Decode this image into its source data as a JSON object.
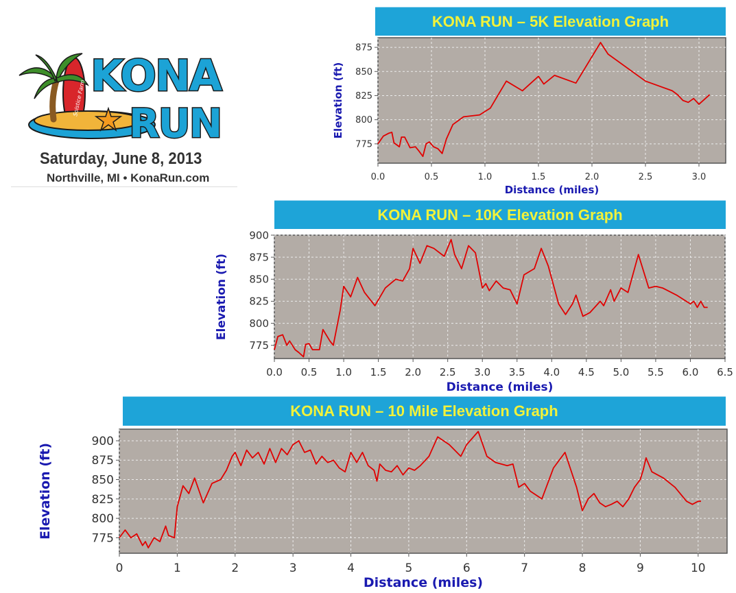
{
  "logo": {
    "wordmark_line1": "KONA",
    "wordmark_line2": "RUN",
    "surfboard_text": "Solstice Farm",
    "date": "Saturday, June 8, 2013",
    "location": "Northville, MI • KonaRun.com",
    "colors": {
      "wordmark": "#1ca3d6",
      "outline": "#1a1a1a",
      "palm": "#3e8e2a",
      "surfboard": "#d8262b",
      "sand": "#f1b43a",
      "starfish": "#f39a1e"
    }
  },
  "colors": {
    "banner_bg": "#1ea4d8",
    "banner_text": "#f2f23a",
    "plot_bg": "#b3aca6",
    "line": "#e00000",
    "axis_label": "#1a1ab0"
  },
  "chart_data": [
    {
      "type": "line",
      "title": "KONA RUN – 5K Elevation Graph",
      "xlabel": "Distance (miles)",
      "ylabel": "Elevation (ft)",
      "xlim": [
        0,
        3.25
      ],
      "ylim": [
        755,
        885
      ],
      "xticks": [
        0,
        0.5,
        1,
        1.5,
        2,
        2.5,
        3
      ],
      "xtick_labels": [
        "0.0",
        "0.5",
        "1.0",
        "1.5",
        "2.0",
        "2.5",
        "3.0"
      ],
      "yticks": [
        775,
        800,
        825,
        850,
        875
      ],
      "grid": true,
      "series": [
        {
          "x": [
            0,
            0.05,
            0.1,
            0.13,
            0.15,
            0.2,
            0.22,
            0.25,
            0.3,
            0.35,
            0.38,
            0.42,
            0.45,
            0.48,
            0.52,
            0.56,
            0.6,
            0.64,
            0.7,
            0.8,
            0.95,
            1.05,
            1.2,
            1.35,
            1.5,
            1.55,
            1.65,
            1.85,
            2.08,
            2.15,
            2.5,
            2.75,
            2.8,
            2.85,
            2.9,
            2.95,
            3.0,
            3.05,
            3.1
          ],
          "y": [
            775,
            783,
            786,
            787,
            776,
            772,
            782,
            782,
            771,
            772,
            768,
            762,
            775,
            777,
            772,
            770,
            765,
            780,
            795,
            803,
            805,
            812,
            840,
            830,
            845,
            837,
            846,
            838,
            880,
            868,
            840,
            830,
            826,
            820,
            818,
            822,
            816,
            821,
            826
          ]
        }
      ]
    },
    {
      "type": "line",
      "title": "KONA RUN – 10K Elevation Graph",
      "xlabel": "Distance (miles)",
      "ylabel": "Elevation (ft)",
      "xlim": [
        0,
        6.5
      ],
      "ylim": [
        760,
        900
      ],
      "xticks": [
        0,
        0.5,
        1,
        1.5,
        2,
        2.5,
        3,
        3.5,
        4,
        4.5,
        5,
        5.5,
        6,
        6.5
      ],
      "xtick_labels": [
        "0.0",
        "0.5",
        "1.0",
        "1.5",
        "2.0",
        "2.5",
        "3.0",
        "3.5",
        "4.0",
        "4.5",
        "5.0",
        "5.5",
        "6.0",
        "6.5"
      ],
      "yticks": [
        775,
        800,
        825,
        850,
        875,
        900
      ],
      "grid": true,
      "series": [
        {
          "x": [
            0,
            0.05,
            0.12,
            0.18,
            0.22,
            0.3,
            0.35,
            0.42,
            0.45,
            0.5,
            0.55,
            0.65,
            0.7,
            0.8,
            0.85,
            0.95,
            1.0,
            1.1,
            1.2,
            1.3,
            1.45,
            1.6,
            1.75,
            1.85,
            1.95,
            2.0,
            2.1,
            2.2,
            2.3,
            2.45,
            2.55,
            2.6,
            2.7,
            2.8,
            2.9,
            3.0,
            3.05,
            3.1,
            3.2,
            3.3,
            3.4,
            3.5,
            3.6,
            3.75,
            3.85,
            3.95,
            4.1,
            4.2,
            4.3,
            4.35,
            4.45,
            4.55,
            4.7,
            4.75,
            4.85,
            4.9,
            5.0,
            5.1,
            5.25,
            5.4,
            5.5,
            5.6,
            5.8,
            6.0,
            6.05,
            6.1,
            6.15,
            6.2,
            6.25
          ],
          "y": [
            770,
            785,
            787,
            775,
            780,
            770,
            767,
            762,
            776,
            777,
            770,
            770,
            793,
            780,
            775,
            815,
            842,
            830,
            852,
            835,
            820,
            840,
            850,
            848,
            862,
            885,
            868,
            888,
            885,
            876,
            895,
            878,
            862,
            888,
            880,
            840,
            845,
            837,
            848,
            840,
            838,
            822,
            855,
            862,
            885,
            865,
            822,
            810,
            822,
            832,
            808,
            812,
            825,
            820,
            838,
            825,
            840,
            835,
            878,
            840,
            842,
            840,
            832,
            822,
            825,
            818,
            825,
            818,
            818
          ]
        }
      ]
    },
    {
      "type": "line",
      "title": "KONA RUN – 10 Mile Elevation Graph",
      "xlabel": "Distance (miles)",
      "ylabel": "Elevation (ft)",
      "xlim": [
        0,
        10.5
      ],
      "ylim": [
        755,
        915
      ],
      "xticks": [
        0,
        1,
        2,
        3,
        4,
        5,
        6,
        7,
        8,
        9,
        10
      ],
      "xtick_labels": [
        "0",
        "1",
        "2",
        "3",
        "4",
        "5",
        "6",
        "7",
        "8",
        "9",
        "10"
      ],
      "yticks": [
        775,
        800,
        825,
        850,
        875,
        900
      ],
      "grid": true,
      "series": [
        {
          "x": [
            0,
            0.1,
            0.2,
            0.3,
            0.4,
            0.45,
            0.5,
            0.6,
            0.7,
            0.8,
            0.85,
            0.95,
            1.0,
            1.1,
            1.2,
            1.3,
            1.45,
            1.6,
            1.75,
            1.85,
            1.95,
            2.0,
            2.1,
            2.2,
            2.3,
            2.4,
            2.5,
            2.6,
            2.7,
            2.8,
            2.9,
            3.0,
            3.1,
            3.2,
            3.3,
            3.4,
            3.5,
            3.6,
            3.7,
            3.8,
            3.9,
            4.0,
            4.1,
            4.2,
            4.3,
            4.4,
            4.45,
            4.5,
            4.6,
            4.7,
            4.8,
            4.9,
            5.0,
            5.1,
            5.2,
            5.35,
            5.5,
            5.7,
            5.9,
            6.0,
            6.2,
            6.35,
            6.5,
            6.6,
            6.7,
            6.8,
            6.9,
            7.0,
            7.1,
            7.3,
            7.5,
            7.7,
            7.9,
            8.0,
            8.1,
            8.2,
            8.3,
            8.4,
            8.5,
            8.6,
            8.7,
            8.8,
            8.9,
            9.0,
            9.05,
            9.1,
            9.2,
            9.4,
            9.6,
            9.8,
            9.9,
            10.0,
            10.05
          ],
          "y": [
            775,
            785,
            775,
            780,
            765,
            770,
            762,
            775,
            770,
            790,
            778,
            775,
            815,
            842,
            832,
            852,
            820,
            845,
            850,
            862,
            880,
            885,
            868,
            888,
            878,
            885,
            870,
            890,
            872,
            890,
            882,
            895,
            900,
            885,
            888,
            870,
            880,
            872,
            875,
            865,
            860,
            885,
            872,
            885,
            868,
            862,
            848,
            870,
            862,
            860,
            868,
            856,
            865,
            862,
            868,
            880,
            905,
            895,
            880,
            895,
            912,
            880,
            872,
            870,
            868,
            870,
            840,
            845,
            835,
            825,
            865,
            885,
            840,
            810,
            825,
            832,
            820,
            815,
            818,
            822,
            815,
            825,
            840,
            850,
            862,
            878,
            860,
            852,
            840,
            822,
            818,
            822,
            822
          ]
        }
      ]
    }
  ]
}
